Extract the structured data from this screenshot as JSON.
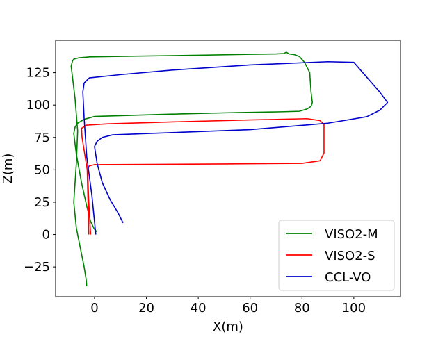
{
  "chart_data": {
    "type": "line",
    "title": "",
    "xlabel": "X(m)",
    "ylabel": "Z(m)",
    "xlim": [
      -15,
      118
    ],
    "ylim": [
      -48,
      150
    ],
    "x_ticks": [
      0,
      20,
      40,
      60,
      80,
      100
    ],
    "y_ticks": [
      -25,
      0,
      25,
      50,
      75,
      100,
      125
    ],
    "grid": false,
    "legend_position": "lower-right",
    "series": [
      {
        "name": "VISO2-M",
        "color": "#008000",
        "x": [
          -3,
          -3.2,
          -4,
          -5,
          -7,
          -8,
          -7,
          -6.5,
          -7.5,
          -9,
          -8.5,
          -8,
          -6,
          -2,
          10,
          40,
          60,
          70,
          73,
          74,
          75,
          77,
          79,
          81,
          83,
          83.5,
          84,
          83.5,
          82,
          79,
          72,
          55,
          30,
          10,
          0,
          -4,
          -6.5,
          -7.5,
          -8,
          -7,
          -5,
          -3,
          -1.5,
          0,
          1
        ],
        "y": [
          -40,
          -35,
          -25,
          -15,
          5,
          25,
          55,
          80,
          105,
          130,
          134,
          135.5,
          136.5,
          137.2,
          137.6,
          138.5,
          139.2,
          139.5,
          139.8,
          140.8,
          139.5,
          139,
          137.5,
          133,
          125,
          110,
          102,
          99,
          97,
          95.2,
          94.8,
          94.2,
          93,
          91.8,
          91.2,
          89,
          86,
          83,
          78,
          62,
          40,
          22,
          10,
          4,
          2
        ]
      },
      {
        "name": "VISO2-S",
        "color": "#ff0000",
        "x": [
          -1.5,
          -1.8,
          -2.2,
          -2.5,
          -2.7,
          -2,
          0,
          20,
          50,
          80,
          87,
          88.5,
          88.5,
          87,
          82,
          60,
          30,
          5,
          -3,
          -5,
          -4.8,
          -4,
          -2.8,
          -2.5,
          -2.2
        ],
        "y": [
          0,
          10,
          25,
          40,
          50,
          53,
          54,
          54.2,
          54.5,
          55,
          57,
          63,
          85,
          88,
          89.5,
          88.5,
          87,
          85.5,
          84.5,
          82,
          75,
          65,
          50,
          25,
          0
        ]
      },
      {
        "name": "CCL-VO",
        "color": "#0000cc",
        "x": [
          11,
          9,
          6,
          3,
          1,
          0,
          1,
          3,
          7,
          20,
          60,
          90,
          105,
          110,
          113,
          110,
          100,
          90,
          60,
          30,
          10,
          -2,
          -4,
          -4.5,
          -4,
          -3,
          -1,
          0,
          0.5
        ],
        "y": [
          9,
          17,
          27,
          40,
          55,
          68,
          72,
          75,
          77,
          78,
          81,
          86,
          91,
          96,
          102,
          110,
          133,
          133.5,
          131,
          127,
          123.5,
          121,
          117,
          110,
          90,
          60,
          30,
          10,
          0
        ]
      }
    ]
  }
}
